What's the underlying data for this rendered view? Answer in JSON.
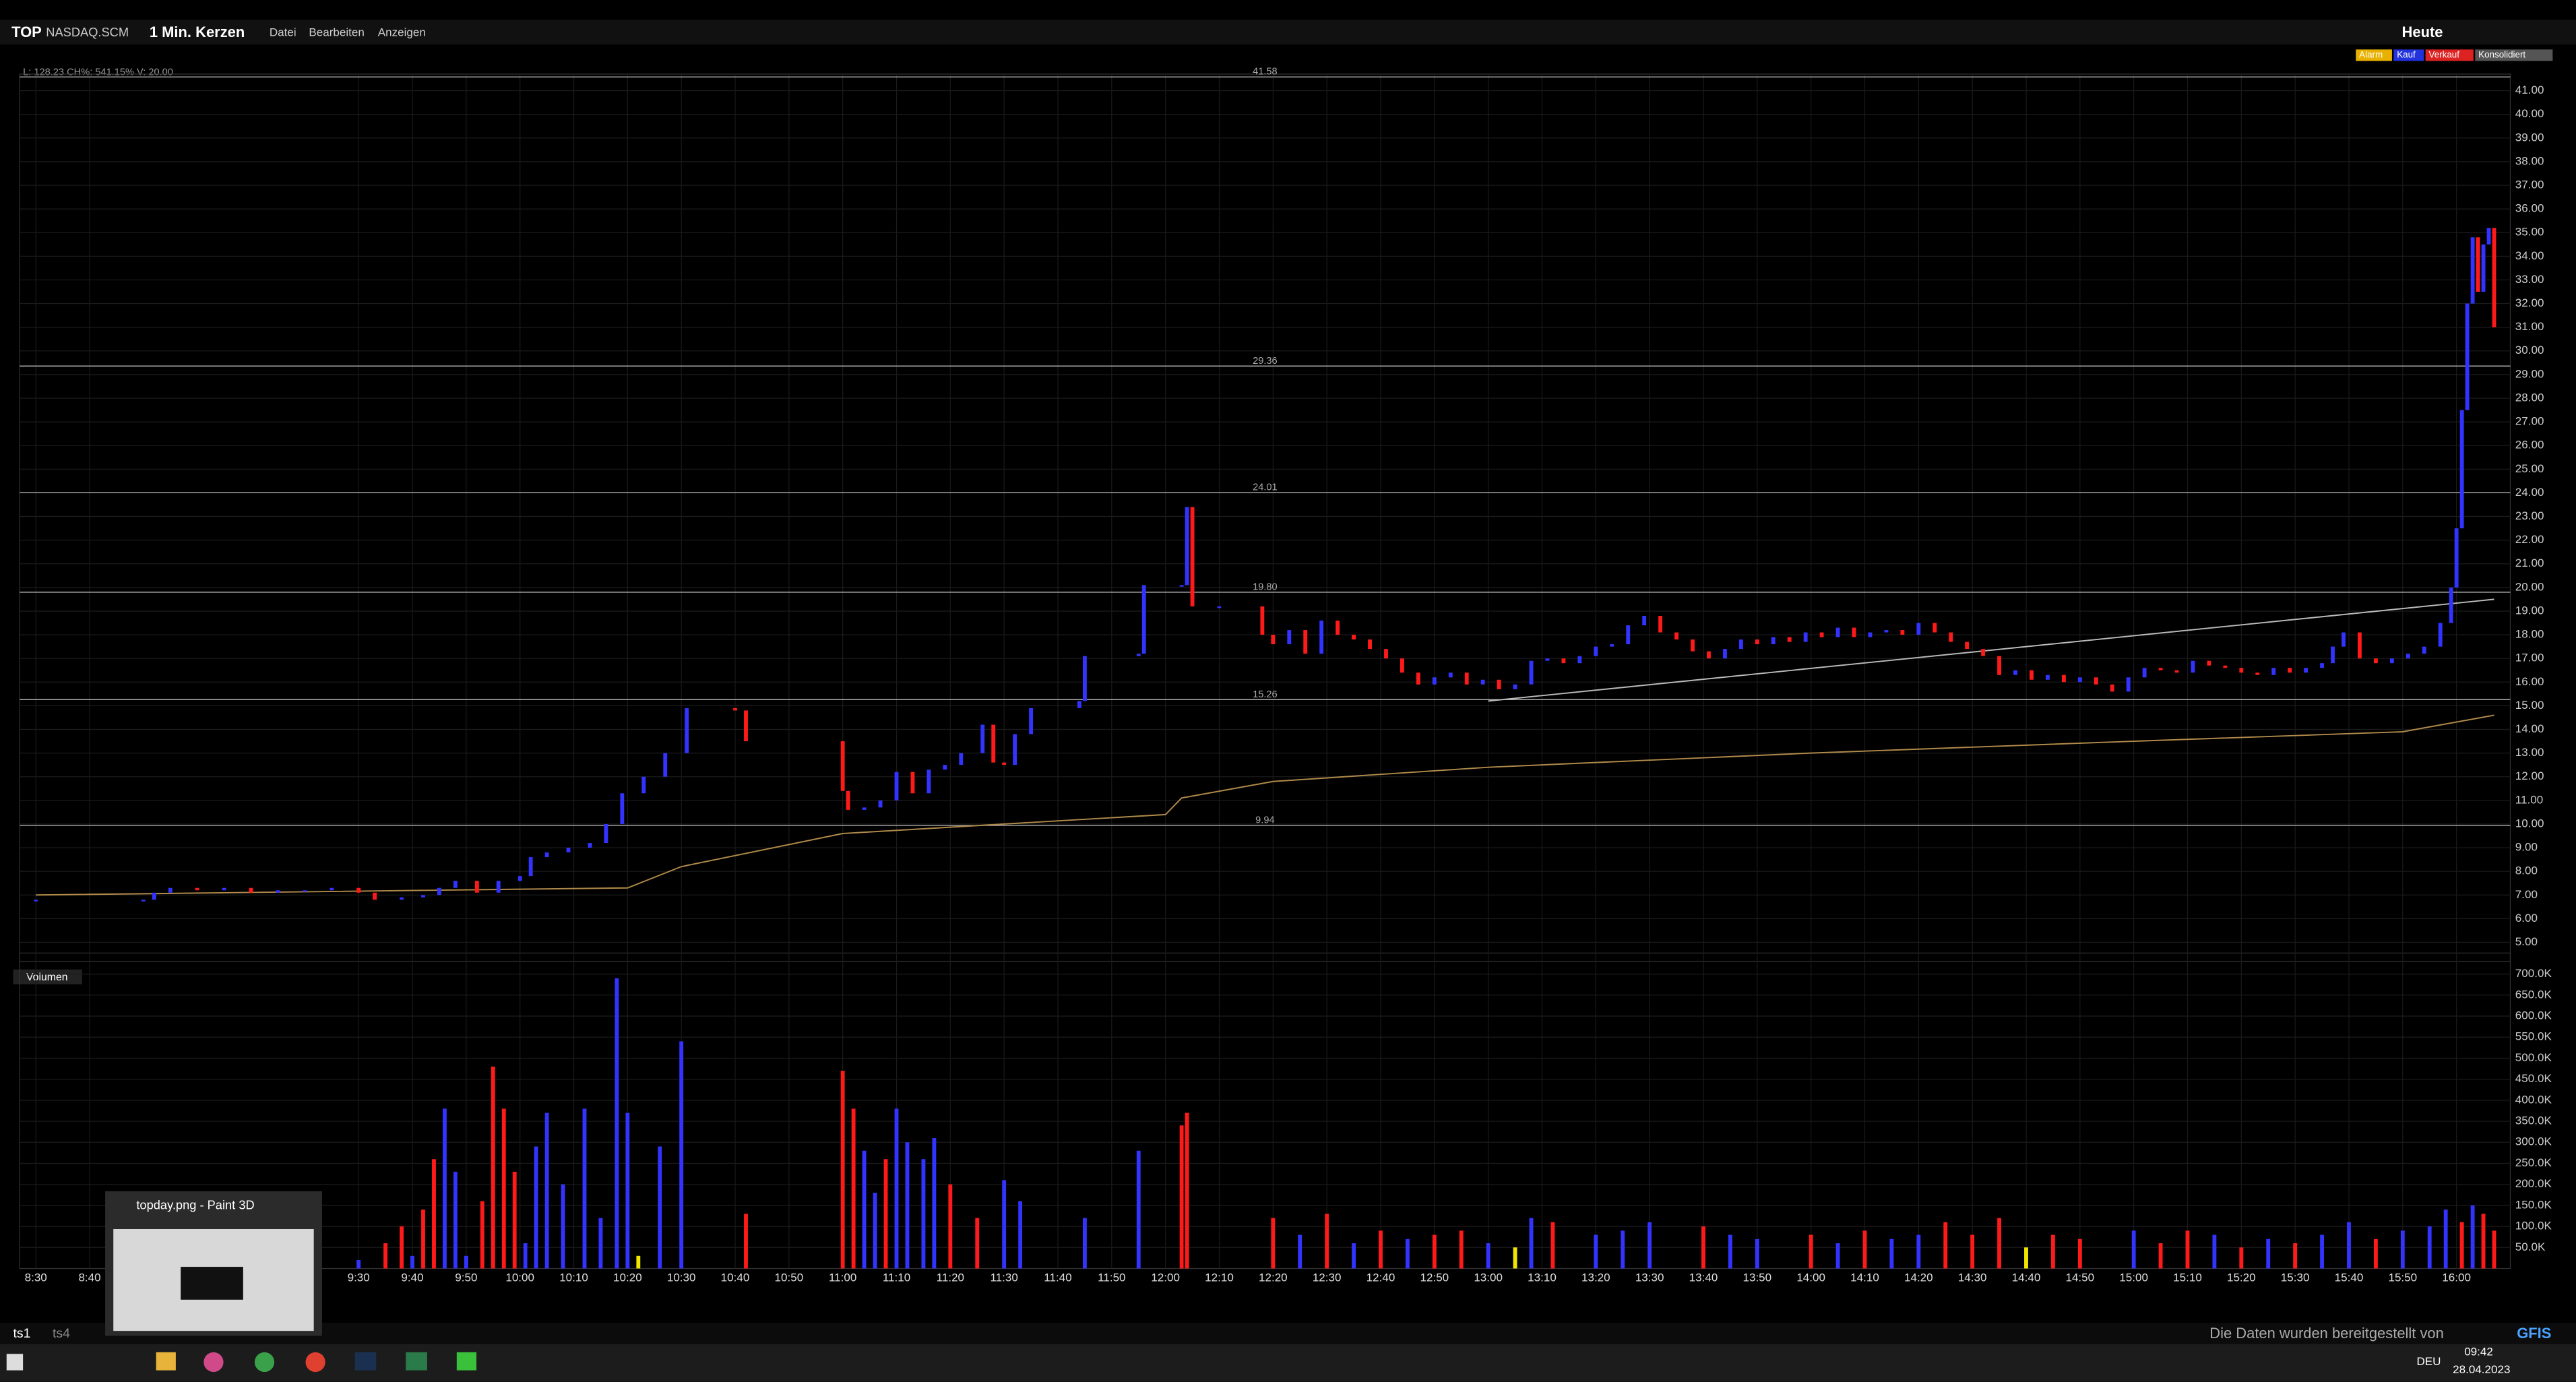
{
  "header": {
    "symbol": "TOP",
    "exchange": "NASDAQ.SCM",
    "interval": "1 Min. Kerzen",
    "menu": [
      "Datei",
      "Bearbeiten",
      "Anzeigen"
    ],
    "range": "Heute",
    "badges": [
      "Alarm",
      "Kauf",
      "Verkauf",
      "Konsolidiert"
    ],
    "info": "L: 128.23 CH%: 541.15% V: 20.00"
  },
  "chart_data": {
    "type": "candlestick",
    "xlim": [
      "8:27",
      "16:10"
    ],
    "xticks": [
      "8:30",
      "8:40",
      "9:30",
      "9:40",
      "9:50",
      "10:00",
      "10:10",
      "10:20",
      "10:30",
      "10:40",
      "10:50",
      "11:00",
      "11:10",
      "11:20",
      "11:30",
      "11:40",
      "11:50",
      "12:00",
      "12:10",
      "12:20",
      "12:30",
      "12:40",
      "12:50",
      "13:00",
      "13:10",
      "13:20",
      "13:30",
      "13:40",
      "13:50",
      "14:00",
      "14:10",
      "14:20",
      "14:30",
      "14:40",
      "14:50",
      "15:00",
      "15:10",
      "15:20",
      "15:30",
      "15:40",
      "15:50",
      "16:00"
    ],
    "price": {
      "ylim": [
        4.2,
        41.7
      ],
      "yticks": [
        {
          "value": 5,
          "label": "5.00"
        },
        {
          "value": 6,
          "label": "6.00"
        },
        {
          "value": 7,
          "label": "7.00"
        },
        {
          "value": 8,
          "label": "8.00"
        },
        {
          "value": 9,
          "label": "9.00"
        },
        {
          "value": 10,
          "label": "10.00"
        },
        {
          "value": 11,
          "label": "11.00"
        },
        {
          "value": 12,
          "label": "12.00"
        },
        {
          "value": 13,
          "label": "13.00"
        },
        {
          "value": 14,
          "label": "14.00"
        },
        {
          "value": 15,
          "label": "15.00"
        },
        {
          "value": 16,
          "label": "16.00"
        },
        {
          "value": 17,
          "label": "17.00"
        },
        {
          "value": 18,
          "label": "18.00"
        },
        {
          "value": 19,
          "label": "19.00"
        },
        {
          "value": 20,
          "label": "20.00"
        },
        {
          "value": 21,
          "label": "21.00"
        },
        {
          "value": 22,
          "label": "22.00"
        },
        {
          "value": 23,
          "label": "23.00"
        },
        {
          "value": 24,
          "label": "24.00"
        },
        {
          "value": 25,
          "label": "25.00"
        },
        {
          "value": 26,
          "label": "26.00"
        },
        {
          "value": 27,
          "label": "27.00"
        },
        {
          "value": 28,
          "label": "28.00"
        },
        {
          "value": 29,
          "label": "29.00"
        },
        {
          "value": 30,
          "label": "30.00"
        },
        {
          "value": 31,
          "label": "31.00"
        },
        {
          "value": 32,
          "label": "32.00"
        },
        {
          "value": 33,
          "label": "33.00"
        },
        {
          "value": 34,
          "label": "34.00"
        },
        {
          "value": 35,
          "label": "35.00"
        },
        {
          "value": 36,
          "label": "36.00"
        },
        {
          "value": 37,
          "label": "37.00"
        },
        {
          "value": 38,
          "label": "38.00"
        },
        {
          "value": 39,
          "label": "39.00"
        },
        {
          "value": 40,
          "label": "40.00"
        },
        {
          "value": 41,
          "label": "41.00"
        }
      ],
      "levels": [
        {
          "value": 41.58,
          "label": "41.58"
        },
        {
          "value": 29.36,
          "label": "29.36"
        },
        {
          "value": 24.01,
          "label": "24.01"
        },
        {
          "value": 19.8,
          "label": "19.80"
        },
        {
          "value": 15.26,
          "label": "15.26"
        },
        {
          "value": 9.94,
          "label": "9.94"
        }
      ],
      "up_color": "#3333ff",
      "down_color": "#ff1a1a",
      "times": [
        "8:30",
        "8:50",
        "8:52",
        "8:55",
        "9:00",
        "9:05",
        "9:10",
        "9:15",
        "9:20",
        "9:25",
        "9:30",
        "9:33",
        "9:38",
        "9:42",
        "9:45",
        "9:48",
        "9:52",
        "9:56",
        "10:00",
        "10:02",
        "10:05",
        "10:09",
        "10:13",
        "10:16",
        "10:19",
        "10:23",
        "10:27",
        "10:31",
        "10:40",
        "10:42",
        "11:00",
        "11:01",
        "11:04",
        "11:07",
        "11:10",
        "11:13",
        "11:16",
        "11:19",
        "11:22",
        "11:26",
        "11:28",
        "11:30",
        "11:32",
        "11:35",
        "11:44",
        "11:45",
        "11:55",
        "11:56",
        "12:03",
        "12:04",
        "12:05",
        "12:10",
        "12:18",
        "12:20",
        "12:23",
        "12:26",
        "12:29",
        "12:32",
        "12:35",
        "12:38",
        "12:41",
        "12:44",
        "12:47",
        "12:50",
        "12:53",
        "12:56",
        "12:59",
        "13:02",
        "13:05",
        "13:08",
        "13:11",
        "13:14",
        "13:17",
        "13:20",
        "13:23",
        "13:26",
        "13:29",
        "13:32",
        "13:35",
        "13:38",
        "13:41",
        "13:44",
        "13:47",
        "13:50",
        "13:53",
        "13:56",
        "13:59",
        "14:02",
        "14:05",
        "14:08",
        "14:11",
        "14:14",
        "14:17",
        "14:20",
        "14:23",
        "14:26",
        "14:29",
        "14:32",
        "14:35",
        "14:38",
        "14:41",
        "14:44",
        "14:47",
        "14:50",
        "14:53",
        "14:56",
        "14:59",
        "15:02",
        "15:05",
        "15:08",
        "15:11",
        "15:14",
        "15:17",
        "15:20",
        "15:23",
        "15:26",
        "15:29",
        "15:32",
        "15:35",
        "15:37",
        "15:39",
        "15:42",
        "15:45",
        "15:48",
        "15:51",
        "15:54",
        "15:57",
        "15:59",
        "16:00",
        "16:01",
        "16:02",
        "16:03",
        "16:04",
        "16:05",
        "16:06",
        "16:07"
      ],
      "closes": [
        6.8,
        6.8,
        7.1,
        7.3,
        7.2,
        7.3,
        7.1,
        7.2,
        7.2,
        7.3,
        7.1,
        6.8,
        6.9,
        7.0,
        7.3,
        7.6,
        7.1,
        7.6,
        7.8,
        8.6,
        8.8,
        9.0,
        9.2,
        10.0,
        11.3,
        12.0,
        13.0,
        14.9,
        14.8,
        13.5,
        11.4,
        10.6,
        10.7,
        11.0,
        12.2,
        11.3,
        12.3,
        12.5,
        13.0,
        14.2,
        12.6,
        12.5,
        13.8,
        14.9,
        15.2,
        17.1,
        17.2,
        20.1,
        20.1,
        23.4,
        19.2,
        19.2,
        18.0,
        17.6,
        18.2,
        17.2,
        18.6,
        18.0,
        17.8,
        17.4,
        17.0,
        16.4,
        15.9,
        16.2,
        16.4,
        15.9,
        16.1,
        15.7,
        15.9,
        16.9,
        17.0,
        16.8,
        17.1,
        17.5,
        17.6,
        18.4,
        18.8,
        18.1,
        17.8,
        17.3,
        17.0,
        17.4,
        17.8,
        17.6,
        17.9,
        17.7,
        18.1,
        17.9,
        18.3,
        17.9,
        18.1,
        18.2,
        18.0,
        18.5,
        18.1,
        17.7,
        17.4,
        17.1,
        16.3,
        16.5,
        16.1,
        16.3,
        16.0,
        16.2,
        15.9,
        15.6,
        16.2,
        16.6,
        16.5,
        16.4,
        16.9,
        16.7,
        16.6,
        16.4,
        16.3,
        16.6,
        16.4,
        16.6,
        16.8,
        17.5,
        18.1,
        17.0,
        16.8,
        17.0,
        17.2,
        17.5,
        18.5,
        20.0,
        22.5,
        27.5,
        32.0,
        34.8,
        32.5,
        34.5,
        35.2,
        31.0
      ],
      "average": {
        "color": "#b08a4a",
        "times": [
          "8:30",
          "10:20",
          "10:30",
          "11:00",
          "12:00",
          "12:03",
          "12:20",
          "13:00",
          "14:00",
          "15:00",
          "15:50",
          "16:07"
        ],
        "values": [
          7.0,
          7.3,
          8.2,
          9.6,
          10.4,
          11.1,
          11.8,
          12.4,
          13.0,
          13.5,
          13.9,
          14.6
        ]
      },
      "trendline": {
        "color": "#bbbbbb",
        "times": [
          "13:00",
          "16:07"
        ],
        "values": [
          15.2,
          19.5
        ]
      }
    },
    "volume": {
      "title": "Volumen",
      "ylim": [
        0,
        750000
      ],
      "yticks": [
        {
          "value": 50000,
          "label": "50.0K"
        },
        {
          "value": 100000,
          "label": "100.0K"
        },
        {
          "value": 150000,
          "label": "150.0K"
        },
        {
          "value": 200000,
          "label": "200.0K"
        },
        {
          "value": 250000,
          "label": "250.0K"
        },
        {
          "value": 300000,
          "label": "300.0K"
        },
        {
          "value": 350000,
          "label": "350.0K"
        },
        {
          "value": 400000,
          "label": "400.0K"
        },
        {
          "value": 450000,
          "label": "450.0K"
        },
        {
          "value": 500000,
          "label": "500.0K"
        },
        {
          "value": 550000,
          "label": "550.0K"
        },
        {
          "value": 600000,
          "label": "600.0K"
        },
        {
          "value": 650000,
          "label": "650.0K"
        },
        {
          "value": 700000,
          "label": "700.0K"
        }
      ],
      "series": [
        {
          "color": "#3333ff",
          "times": [
            "9:30",
            "9:40",
            "9:46",
            "9:48",
            "9:50",
            "10:01",
            "10:03",
            "10:05",
            "10:08",
            "10:12",
            "10:15",
            "10:18",
            "10:20",
            "10:26",
            "10:30",
            "11:04",
            "11:06",
            "11:10",
            "11:12",
            "11:15",
            "11:17",
            "11:30",
            "11:33",
            "11:45",
            "11:55",
            "12:25",
            "12:35",
            "12:45",
            "13:00",
            "13:08",
            "13:20",
            "13:25",
            "13:30",
            "13:45",
            "13:50",
            "14:05",
            "14:15",
            "14:20",
            "15:00",
            "15:15",
            "15:25",
            "15:35",
            "15:40",
            "15:50",
            "15:55",
            "15:58",
            "16:03"
          ],
          "values": [
            20000,
            30000,
            380000,
            230000,
            30000,
            60000,
            290000,
            370000,
            200000,
            380000,
            120000,
            690000,
            370000,
            290000,
            540000,
            280000,
            180000,
            380000,
            300000,
            260000,
            310000,
            210000,
            160000,
            120000,
            280000,
            80000,
            60000,
            70000,
            60000,
            120000,
            80000,
            90000,
            110000,
            80000,
            70000,
            60000,
            70000,
            80000,
            90000,
            80000,
            70000,
            80000,
            110000,
            90000,
            100000,
            140000,
            150000
          ]
        },
        {
          "color": "#ff1a1a",
          "times": [
            "9:35",
            "9:38",
            "9:42",
            "9:44",
            "9:53",
            "9:55",
            "9:57",
            "9:59",
            "10:42",
            "11:00",
            "11:02",
            "11:08",
            "11:20",
            "11:25",
            "12:03",
            "12:04",
            "12:20",
            "12:30",
            "12:40",
            "12:50",
            "12:55",
            "13:12",
            "13:40",
            "14:00",
            "14:10",
            "14:25",
            "14:30",
            "14:35",
            "14:45",
            "14:50",
            "15:05",
            "15:10",
            "15:20",
            "15:30",
            "15:45",
            "16:01",
            "16:05",
            "16:07"
          ],
          "values": [
            60000,
            100000,
            140000,
            260000,
            160000,
            480000,
            380000,
            230000,
            130000,
            470000,
            380000,
            260000,
            200000,
            120000,
            340000,
            370000,
            120000,
            130000,
            90000,
            80000,
            90000,
            110000,
            100000,
            80000,
            90000,
            110000,
            80000,
            120000,
            80000,
            70000,
            60000,
            90000,
            50000,
            60000,
            70000,
            110000,
            130000,
            90000
          ]
        },
        {
          "color": "#f2e600",
          "times": [
            "10:22",
            "13:05",
            "14:40"
          ],
          "values": [
            30000,
            50000,
            50000
          ]
        }
      ]
    }
  },
  "footer": {
    "tabs": [
      "ts1",
      "ts4"
    ],
    "credit": "Die Daten wurden bereitgestellt von",
    "provider": "GFIS",
    "clock": "09:42",
    "date": "28.04.2023",
    "lang": "DEU",
    "popup": "topday.png - Paint 3D"
  }
}
